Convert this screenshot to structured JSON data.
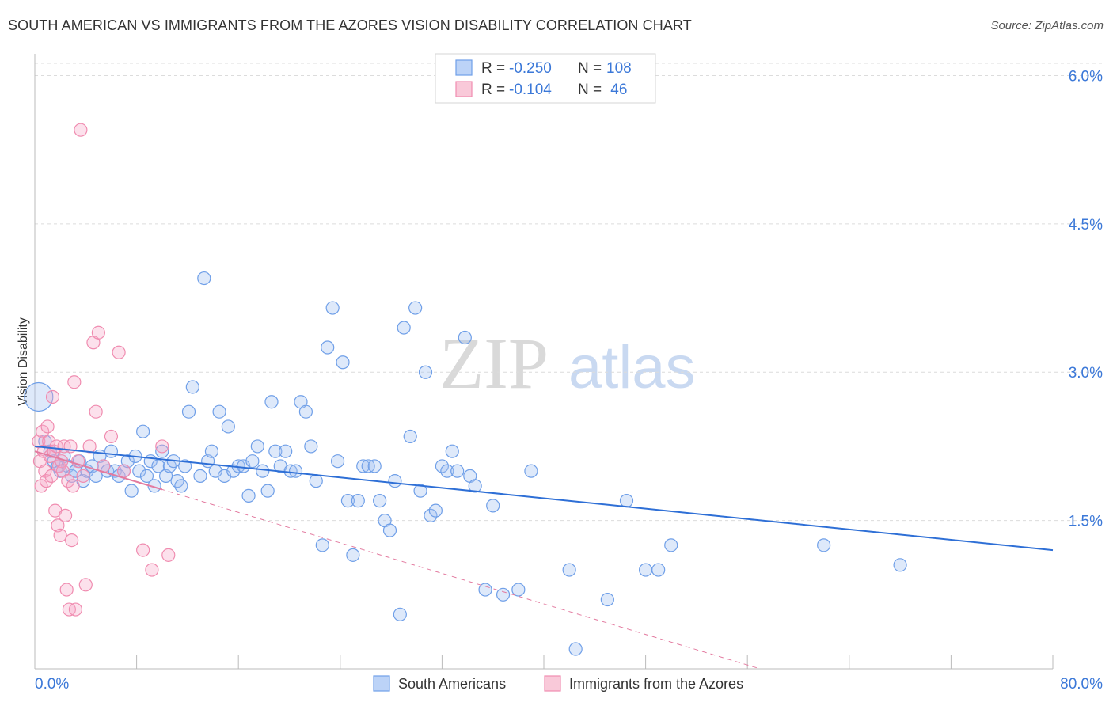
{
  "title": "SOUTH AMERICAN VS IMMIGRANTS FROM THE AZORES VISION DISABILITY CORRELATION CHART",
  "source": "Source: ZipAtlas.com",
  "watermark": {
    "zip": "ZIP",
    "atlas": "atlas"
  },
  "chart_data": {
    "type": "scatter",
    "ylabel": "Vision Disability",
    "xlim": [
      0,
      80
    ],
    "ylim": [
      0,
      6.3
    ],
    "x_tick_labels": {
      "min": "0.0%",
      "max": "80.0%"
    },
    "y_ticks": [
      {
        "value": 1.5,
        "label": "1.5%"
      },
      {
        "value": 3.0,
        "label": "3.0%"
      },
      {
        "value": 4.5,
        "label": "4.5%"
      },
      {
        "value": 6.0,
        "label": "6.0%"
      }
    ],
    "legend": [
      {
        "r_label": "R = ",
        "r_value": "-0.250",
        "n_label": "N = ",
        "n_value": "108"
      },
      {
        "r_label": "R = ",
        "r_value": "-0.104",
        "n_label": "N = ",
        "n_value": " 46"
      }
    ],
    "series": [
      {
        "name": "South Americans",
        "color": "#6f9fe8",
        "line_color": "#2e6fd6",
        "trend": {
          "x0": 0,
          "y0": 2.25,
          "x1": 80,
          "y1": 1.2,
          "dashed": false
        },
        "points": [
          [
            0.3,
            2.75
          ],
          [
            0.8,
            2.3
          ],
          [
            1.2,
            2.2
          ],
          [
            1.5,
            2.1
          ],
          [
            1.8,
            2.05
          ],
          [
            2.0,
            2.0
          ],
          [
            2.3,
            2.15
          ],
          [
            2.6,
            2.05
          ],
          [
            2.9,
            1.95
          ],
          [
            3.2,
            2.0
          ],
          [
            3.5,
            2.1
          ],
          [
            3.8,
            1.9
          ],
          [
            4.1,
            2.0
          ],
          [
            4.5,
            2.05
          ],
          [
            4.8,
            1.95
          ],
          [
            5.1,
            2.15
          ],
          [
            5.4,
            2.05
          ],
          [
            5.7,
            2.0
          ],
          [
            6.0,
            2.2
          ],
          [
            6.3,
            2.0
          ],
          [
            6.6,
            1.95
          ],
          [
            7.0,
            2.0
          ],
          [
            7.3,
            2.1
          ],
          [
            7.6,
            1.8
          ],
          [
            7.9,
            2.15
          ],
          [
            8.2,
            2.0
          ],
          [
            8.5,
            2.4
          ],
          [
            8.8,
            1.95
          ],
          [
            9.1,
            2.1
          ],
          [
            9.4,
            1.85
          ],
          [
            9.7,
            2.05
          ],
          [
            10.0,
            2.2
          ],
          [
            10.3,
            1.95
          ],
          [
            10.6,
            2.05
          ],
          [
            10.9,
            2.1
          ],
          [
            11.2,
            1.9
          ],
          [
            11.5,
            1.85
          ],
          [
            11.8,
            2.05
          ],
          [
            12.1,
            2.6
          ],
          [
            12.4,
            2.85
          ],
          [
            13.0,
            1.95
          ],
          [
            13.3,
            3.95
          ],
          [
            13.6,
            2.1
          ],
          [
            13.9,
            2.2
          ],
          [
            14.2,
            2.0
          ],
          [
            14.5,
            2.6
          ],
          [
            14.9,
            1.95
          ],
          [
            15.2,
            2.45
          ],
          [
            15.6,
            2.0
          ],
          [
            16.0,
            2.05
          ],
          [
            16.4,
            2.05
          ],
          [
            16.8,
            1.75
          ],
          [
            17.1,
            2.1
          ],
          [
            17.5,
            2.25
          ],
          [
            17.9,
            2.0
          ],
          [
            18.3,
            1.8
          ],
          [
            18.6,
            2.7
          ],
          [
            18.9,
            2.2
          ],
          [
            19.3,
            2.05
          ],
          [
            19.7,
            2.2
          ],
          [
            20.1,
            2.0
          ],
          [
            20.5,
            2.0
          ],
          [
            20.9,
            2.7
          ],
          [
            21.3,
            2.6
          ],
          [
            21.7,
            2.25
          ],
          [
            22.1,
            1.9
          ],
          [
            22.6,
            1.25
          ],
          [
            23.0,
            3.25
          ],
          [
            23.4,
            3.65
          ],
          [
            23.8,
            2.1
          ],
          [
            24.2,
            3.1
          ],
          [
            24.6,
            1.7
          ],
          [
            25.0,
            1.15
          ],
          [
            25.4,
            1.7
          ],
          [
            25.8,
            2.05
          ],
          [
            26.2,
            2.05
          ],
          [
            26.7,
            2.05
          ],
          [
            27.1,
            1.7
          ],
          [
            27.5,
            1.5
          ],
          [
            27.9,
            1.4
          ],
          [
            28.3,
            1.9
          ],
          [
            28.7,
            0.55
          ],
          [
            29.0,
            3.45
          ],
          [
            29.5,
            2.35
          ],
          [
            29.9,
            3.65
          ],
          [
            30.3,
            1.8
          ],
          [
            30.7,
            3.0
          ],
          [
            31.1,
            1.55
          ],
          [
            31.5,
            1.6
          ],
          [
            32.0,
            2.05
          ],
          [
            32.4,
            2.0
          ],
          [
            32.8,
            2.2
          ],
          [
            33.2,
            2.0
          ],
          [
            33.8,
            3.35
          ],
          [
            34.2,
            1.95
          ],
          [
            34.6,
            1.85
          ],
          [
            35.4,
            0.8
          ],
          [
            36.0,
            1.65
          ],
          [
            36.8,
            0.75
          ],
          [
            38.0,
            0.8
          ],
          [
            39.0,
            2.0
          ],
          [
            42.0,
            1.0
          ],
          [
            42.5,
            0.2
          ],
          [
            45.0,
            0.7
          ],
          [
            46.5,
            1.7
          ],
          [
            48.0,
            1.0
          ],
          [
            49.0,
            1.0
          ],
          [
            50.0,
            1.25
          ],
          [
            62.0,
            1.25
          ],
          [
            68.0,
            1.05
          ]
        ]
      },
      {
        "name": "Immigrants from the Azores",
        "color": "#f08cb0",
        "line_color": "#e37ba0",
        "trend": {
          "x0": 0,
          "y0": 2.2,
          "x1": 57,
          "y1": 0.0,
          "dashed": true
        },
        "points": [
          [
            0.3,
            2.3
          ],
          [
            0.4,
            2.1
          ],
          [
            0.5,
            1.85
          ],
          [
            0.6,
            2.4
          ],
          [
            0.7,
            2.2
          ],
          [
            0.8,
            2.0
          ],
          [
            0.9,
            1.9
          ],
          [
            1.0,
            2.45
          ],
          [
            1.1,
            2.3
          ],
          [
            1.2,
            2.15
          ],
          [
            1.3,
            1.95
          ],
          [
            1.4,
            2.75
          ],
          [
            1.5,
            2.2
          ],
          [
            1.6,
            1.6
          ],
          [
            1.7,
            2.25
          ],
          [
            1.8,
            1.45
          ],
          [
            1.9,
            2.05
          ],
          [
            2.0,
            1.35
          ],
          [
            2.1,
            2.1
          ],
          [
            2.2,
            2.0
          ],
          [
            2.3,
            2.25
          ],
          [
            2.4,
            1.55
          ],
          [
            2.5,
            0.8
          ],
          [
            2.6,
            1.9
          ],
          [
            2.7,
            0.6
          ],
          [
            2.8,
            2.25
          ],
          [
            2.9,
            1.3
          ],
          [
            3.0,
            1.85
          ],
          [
            3.1,
            2.9
          ],
          [
            3.2,
            0.6
          ],
          [
            3.4,
            2.1
          ],
          [
            3.6,
            5.45
          ],
          [
            3.8,
            1.95
          ],
          [
            4.0,
            0.85
          ],
          [
            4.3,
            2.25
          ],
          [
            4.6,
            3.3
          ],
          [
            5.0,
            3.4
          ],
          [
            5.4,
            2.05
          ],
          [
            6.0,
            2.35
          ],
          [
            6.6,
            3.2
          ],
          [
            7.0,
            2.0
          ],
          [
            8.5,
            1.2
          ],
          [
            9.2,
            1.0
          ],
          [
            10.0,
            2.25
          ],
          [
            10.5,
            1.15
          ],
          [
            4.8,
            2.6
          ]
        ]
      }
    ]
  },
  "bottom_legend": [
    {
      "label": "South Americans"
    },
    {
      "label": "Immigrants from the Azores"
    }
  ]
}
